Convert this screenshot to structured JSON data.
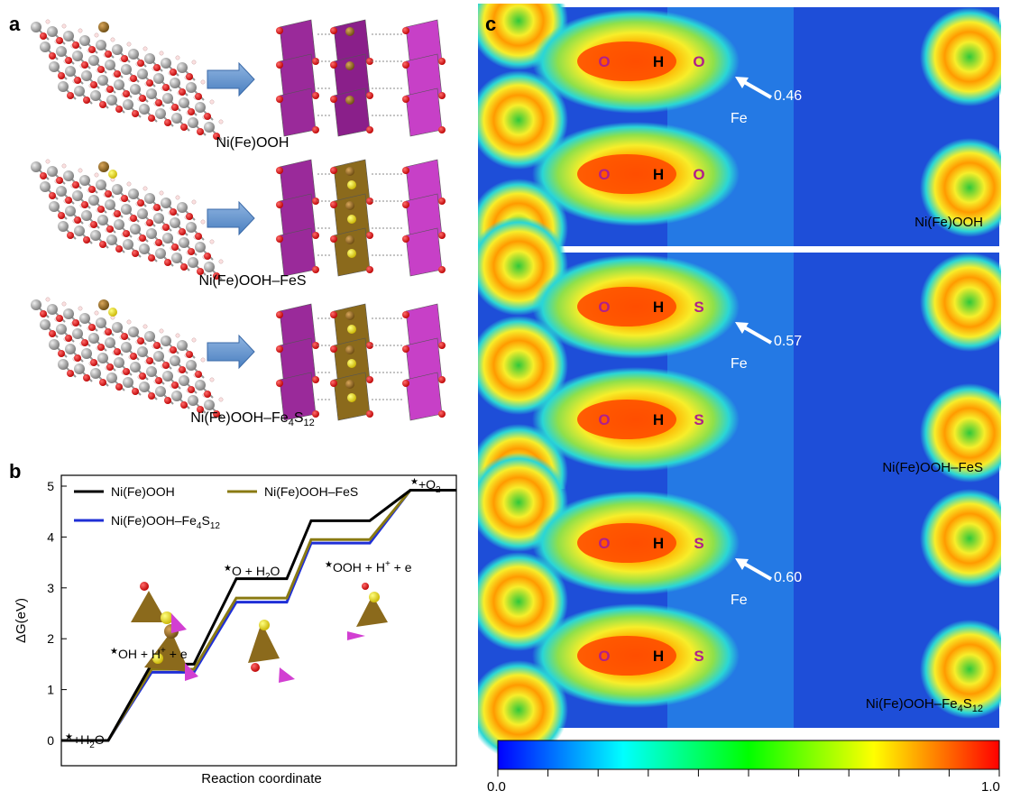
{
  "panels": {
    "a": {
      "letter": "a",
      "rows": [
        {
          "caption": "Ni(Fe)OOH"
        },
        {
          "caption": "Ni(Fe)OOH–FeS"
        },
        {
          "caption": "Ni(Fe)OOH–Fe4S12",
          "caption_main": "Ni(Fe)OOH–Fe",
          "caption_sub1": "4",
          "caption_mid": "S",
          "caption_sub2": "12"
        }
      ]
    },
    "b": {
      "letter": "b",
      "chart_data": {
        "type": "line",
        "xlabel": "Reaction coordinate",
        "ylabel": "ΔG(eV)",
        "ylim": [
          0,
          5.3
        ],
        "yticks": [
          "0",
          "1",
          "2",
          "3",
          "4",
          "5"
        ],
        "steps": [
          "*+H2O",
          "*OH + H+ + e",
          "*O + H2O",
          "*OOH + H+ + e",
          "*+O2"
        ],
        "series": [
          {
            "name": "Ni(Fe)OOH",
            "color": "#000000",
            "values": [
              0,
              1.5,
              3.18,
              4.32,
              4.92
            ]
          },
          {
            "name": "Ni(Fe)OOH–FeS",
            "color": "#8a7a12",
            "values": [
              0,
              1.4,
              2.8,
              3.95,
              4.92
            ]
          },
          {
            "name": "Ni(Fe)OOH–Fe4S12",
            "color": "#1f2fd6",
            "values": [
              0,
              1.34,
              2.72,
              3.88,
              4.92
            ]
          }
        ],
        "legend": "top"
      },
      "labels": {
        "h2o_star": "★",
        "h2o_text": "+H",
        "h2o_sub": "2",
        "h2o_end": "O",
        "oh_star": "★",
        "oh_text": "OH + H",
        "oh_sup": "+",
        "oh_end": " + e",
        "o_star": "★",
        "o_text": "O + H",
        "o_sub": "2",
        "o_end": "O",
        "ooh_star": "★",
        "ooh_text": "OOH + H",
        "ooh_sup": "+",
        "ooh_end": " + e",
        "o2_star": "★",
        "o2_text": "+O",
        "o2_sub": "2"
      }
    },
    "c": {
      "letter": "c",
      "maps": [
        {
          "atoms": [
            "O",
            "H",
            "O"
          ],
          "fe": "Fe",
          "value": "0.46",
          "name": "Ni(Fe)OOH"
        },
        {
          "atoms": [
            "O",
            "H",
            "S"
          ],
          "fe": "Fe",
          "value": "0.57",
          "name": "Ni(Fe)OOH–FeS"
        },
        {
          "atoms": [
            "O",
            "H",
            "S"
          ],
          "fe": "Fe",
          "value": "0.60",
          "name_main": "Ni(Fe)OOH–Fe",
          "name_sub1": "4",
          "name_mid": "S",
          "name_sub2": "12"
        }
      ],
      "colorbar": {
        "min": "0.0",
        "max": "1.0"
      }
    }
  }
}
